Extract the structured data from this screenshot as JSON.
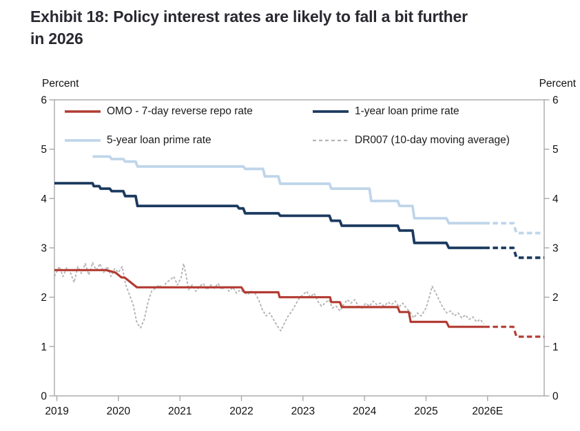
{
  "title": {
    "line1": "Exhibit 18: Policy interest rates are likely to fall a bit further",
    "line2": "in 2026"
  },
  "axis_unit_left": "Percent",
  "axis_unit_right": "Percent",
  "chart_data": {
    "type": "line",
    "title": "Exhibit 18: Policy interest rates are likely to fall a bit further in 2026",
    "ylabel_left": "Percent",
    "ylabel_right": "Percent",
    "grid": false,
    "legend_position": "top-inside-two-rows",
    "x_axis": {
      "range": [
        2018.96,
        2026.92
      ],
      "ticks": [
        {
          "t": 2019,
          "label": "2019"
        },
        {
          "t": 2020,
          "label": "2020"
        },
        {
          "t": 2021,
          "label": "2021"
        },
        {
          "t": 2022,
          "label": "2022"
        },
        {
          "t": 2023,
          "label": "2023"
        },
        {
          "t": 2024,
          "label": "2024"
        },
        {
          "t": 2025,
          "label": "2025"
        },
        {
          "t": 2026,
          "label": "2026E"
        }
      ]
    },
    "y_axis": {
      "range": [
        0,
        6
      ],
      "ticks": [
        0,
        1,
        2,
        3,
        4,
        5,
        6
      ],
      "sides": [
        "left",
        "right"
      ]
    },
    "colors": {
      "frame": "#A8A8A8",
      "axis_text": "#111111",
      "title_text": "#292931"
    },
    "series": [
      {
        "name": "OMO - 7-day reverse repo rate",
        "color": "#B23B32",
        "width": 3.2,
        "style": "solid",
        "points": [
          [
            2018.96,
            2.55
          ],
          [
            2019.8,
            2.55
          ],
          [
            2019.95,
            2.5
          ],
          [
            2020.05,
            2.4
          ],
          [
            2020.1,
            2.4
          ],
          [
            2020.3,
            2.2
          ],
          [
            2022.0,
            2.2
          ],
          [
            2022.05,
            2.1
          ],
          [
            2022.6,
            2.1
          ],
          [
            2022.62,
            2.0
          ],
          [
            2023.44,
            2.0
          ],
          [
            2023.46,
            1.9
          ],
          [
            2023.6,
            1.9
          ],
          [
            2023.63,
            1.8
          ],
          [
            2024.54,
            1.8
          ],
          [
            2024.57,
            1.7
          ],
          [
            2024.72,
            1.7
          ],
          [
            2024.75,
            1.5
          ],
          [
            2025.33,
            1.5
          ],
          [
            2025.37,
            1.4
          ],
          [
            2025.95,
            1.4
          ]
        ],
        "forecast": [
          [
            2025.95,
            1.4
          ],
          [
            2026.42,
            1.4
          ],
          [
            2026.47,
            1.2
          ],
          [
            2026.92,
            1.2
          ]
        ]
      },
      {
        "name": "1-year loan prime rate",
        "color": "#1C3A5F",
        "width": 3.8,
        "style": "solid",
        "points": [
          [
            2018.96,
            4.31
          ],
          [
            2019.58,
            4.31
          ],
          [
            2019.6,
            4.25
          ],
          [
            2019.69,
            4.25
          ],
          [
            2019.71,
            4.2
          ],
          [
            2019.86,
            4.2
          ],
          [
            2019.89,
            4.15
          ],
          [
            2020.08,
            4.15
          ],
          [
            2020.11,
            4.05
          ],
          [
            2020.28,
            4.05
          ],
          [
            2020.31,
            3.85
          ],
          [
            2021.93,
            3.85
          ],
          [
            2021.96,
            3.8
          ],
          [
            2022.03,
            3.8
          ],
          [
            2022.06,
            3.7
          ],
          [
            2022.6,
            3.7
          ],
          [
            2022.63,
            3.65
          ],
          [
            2023.43,
            3.65
          ],
          [
            2023.46,
            3.55
          ],
          [
            2023.6,
            3.55
          ],
          [
            2023.63,
            3.45
          ],
          [
            2024.54,
            3.45
          ],
          [
            2024.57,
            3.35
          ],
          [
            2024.78,
            3.35
          ],
          [
            2024.81,
            3.1
          ],
          [
            2025.33,
            3.1
          ],
          [
            2025.37,
            3.0
          ],
          [
            2025.95,
            3.0
          ]
        ],
        "forecast": [
          [
            2025.95,
            3.0
          ],
          [
            2026.42,
            3.0
          ],
          [
            2026.47,
            2.8
          ],
          [
            2026.92,
            2.8
          ]
        ]
      },
      {
        "name": "5-year loan prime rate",
        "color": "#BFD5EA",
        "width": 3.8,
        "style": "solid",
        "points": [
          [
            2019.58,
            4.85
          ],
          [
            2019.86,
            4.85
          ],
          [
            2019.89,
            4.8
          ],
          [
            2020.08,
            4.8
          ],
          [
            2020.11,
            4.75
          ],
          [
            2020.28,
            4.75
          ],
          [
            2020.31,
            4.65
          ],
          [
            2022.03,
            4.65
          ],
          [
            2022.06,
            4.6
          ],
          [
            2022.35,
            4.6
          ],
          [
            2022.38,
            4.45
          ],
          [
            2022.6,
            4.45
          ],
          [
            2022.63,
            4.3
          ],
          [
            2023.43,
            4.3
          ],
          [
            2023.46,
            4.2
          ],
          [
            2024.08,
            4.2
          ],
          [
            2024.11,
            3.95
          ],
          [
            2024.54,
            3.95
          ],
          [
            2024.57,
            3.85
          ],
          [
            2024.78,
            3.85
          ],
          [
            2024.81,
            3.6
          ],
          [
            2025.33,
            3.6
          ],
          [
            2025.37,
            3.5
          ],
          [
            2025.95,
            3.5
          ]
        ],
        "forecast": [
          [
            2025.95,
            3.5
          ],
          [
            2026.42,
            3.5
          ],
          [
            2026.47,
            3.3
          ],
          [
            2026.92,
            3.3
          ]
        ]
      },
      {
        "name": "DR007 (10-day moving average)",
        "color": "#B4B4B4",
        "width": 1.9,
        "style": "dashed",
        "dash": "3.5 2.5",
        "points": [
          [
            2018.96,
            2.42
          ],
          [
            2019.04,
            2.62
          ],
          [
            2019.1,
            2.42
          ],
          [
            2019.16,
            2.6
          ],
          [
            2019.22,
            2.5
          ],
          [
            2019.28,
            2.3
          ],
          [
            2019.34,
            2.62
          ],
          [
            2019.4,
            2.48
          ],
          [
            2019.46,
            2.68
          ],
          [
            2019.52,
            2.45
          ],
          [
            2019.58,
            2.7
          ],
          [
            2019.64,
            2.55
          ],
          [
            2019.7,
            2.68
          ],
          [
            2019.76,
            2.5
          ],
          [
            2019.82,
            2.62
          ],
          [
            2019.88,
            2.42
          ],
          [
            2019.94,
            2.58
          ],
          [
            2020.0,
            2.5
          ],
          [
            2020.06,
            2.62
          ],
          [
            2020.12,
            2.25
          ],
          [
            2020.18,
            2.05
          ],
          [
            2020.24,
            1.85
          ],
          [
            2020.3,
            1.48
          ],
          [
            2020.36,
            1.38
          ],
          [
            2020.42,
            1.55
          ],
          [
            2020.48,
            1.9
          ],
          [
            2020.54,
            2.12
          ],
          [
            2020.6,
            2.18
          ],
          [
            2020.66,
            2.25
          ],
          [
            2020.72,
            2.18
          ],
          [
            2020.78,
            2.3
          ],
          [
            2020.84,
            2.35
          ],
          [
            2020.9,
            2.42
          ],
          [
            2020.96,
            2.25
          ],
          [
            2021.02,
            2.4
          ],
          [
            2021.06,
            2.68
          ],
          [
            2021.1,
            2.45
          ],
          [
            2021.14,
            2.15
          ],
          [
            2021.2,
            2.25
          ],
          [
            2021.26,
            2.12
          ],
          [
            2021.32,
            2.22
          ],
          [
            2021.38,
            2.28
          ],
          [
            2021.44,
            2.15
          ],
          [
            2021.5,
            2.25
          ],
          [
            2021.56,
            2.18
          ],
          [
            2021.62,
            2.28
          ],
          [
            2021.68,
            2.15
          ],
          [
            2021.74,
            2.22
          ],
          [
            2021.8,
            2.12
          ],
          [
            2021.86,
            2.2
          ],
          [
            2021.92,
            2.08
          ],
          [
            2021.98,
            2.15
          ],
          [
            2022.04,
            2.1
          ],
          [
            2022.1,
            2.05
          ],
          [
            2022.16,
            2.12
          ],
          [
            2022.22,
            2.08
          ],
          [
            2022.28,
            1.95
          ],
          [
            2022.34,
            1.75
          ],
          [
            2022.4,
            1.62
          ],
          [
            2022.46,
            1.68
          ],
          [
            2022.52,
            1.55
          ],
          [
            2022.58,
            1.42
          ],
          [
            2022.64,
            1.32
          ],
          [
            2022.7,
            1.48
          ],
          [
            2022.76,
            1.62
          ],
          [
            2022.82,
            1.72
          ],
          [
            2022.88,
            1.85
          ],
          [
            2022.94,
            1.98
          ],
          [
            2023.0,
            2.05
          ],
          [
            2023.06,
            2.12
          ],
          [
            2023.12,
            2.0
          ],
          [
            2023.18,
            2.08
          ],
          [
            2023.24,
            1.92
          ],
          [
            2023.3,
            1.82
          ],
          [
            2023.36,
            1.88
          ],
          [
            2023.42,
            1.95
          ],
          [
            2023.48,
            1.78
          ],
          [
            2023.54,
            1.82
          ],
          [
            2023.6,
            1.72
          ],
          [
            2023.66,
            1.85
          ],
          [
            2023.72,
            1.95
          ],
          [
            2023.78,
            1.88
          ],
          [
            2023.84,
            1.95
          ],
          [
            2023.9,
            1.82
          ],
          [
            2023.96,
            1.78
          ],
          [
            2024.02,
            1.88
          ],
          [
            2024.08,
            1.82
          ],
          [
            2024.14,
            1.92
          ],
          [
            2024.2,
            1.85
          ],
          [
            2024.26,
            1.88
          ],
          [
            2024.32,
            1.82
          ],
          [
            2024.38,
            1.9
          ],
          [
            2024.44,
            1.85
          ],
          [
            2024.5,
            1.92
          ],
          [
            2024.56,
            1.8
          ],
          [
            2024.62,
            1.88
          ],
          [
            2024.68,
            1.78
          ],
          [
            2024.74,
            1.7
          ],
          [
            2024.8,
            1.58
          ],
          [
            2024.86,
            1.68
          ],
          [
            2024.92,
            1.62
          ],
          [
            2025.0,
            1.78
          ],
          [
            2025.04,
            1.95
          ],
          [
            2025.1,
            2.22
          ],
          [
            2025.16,
            2.08
          ],
          [
            2025.22,
            1.92
          ],
          [
            2025.28,
            1.78
          ],
          [
            2025.34,
            1.68
          ],
          [
            2025.4,
            1.72
          ],
          [
            2025.46,
            1.62
          ],
          [
            2025.52,
            1.68
          ],
          [
            2025.58,
            1.58
          ],
          [
            2025.64,
            1.64
          ],
          [
            2025.7,
            1.55
          ],
          [
            2025.76,
            1.6
          ],
          [
            2025.82,
            1.5
          ],
          [
            2025.88,
            1.55
          ],
          [
            2025.94,
            1.46
          ]
        ]
      }
    ]
  }
}
